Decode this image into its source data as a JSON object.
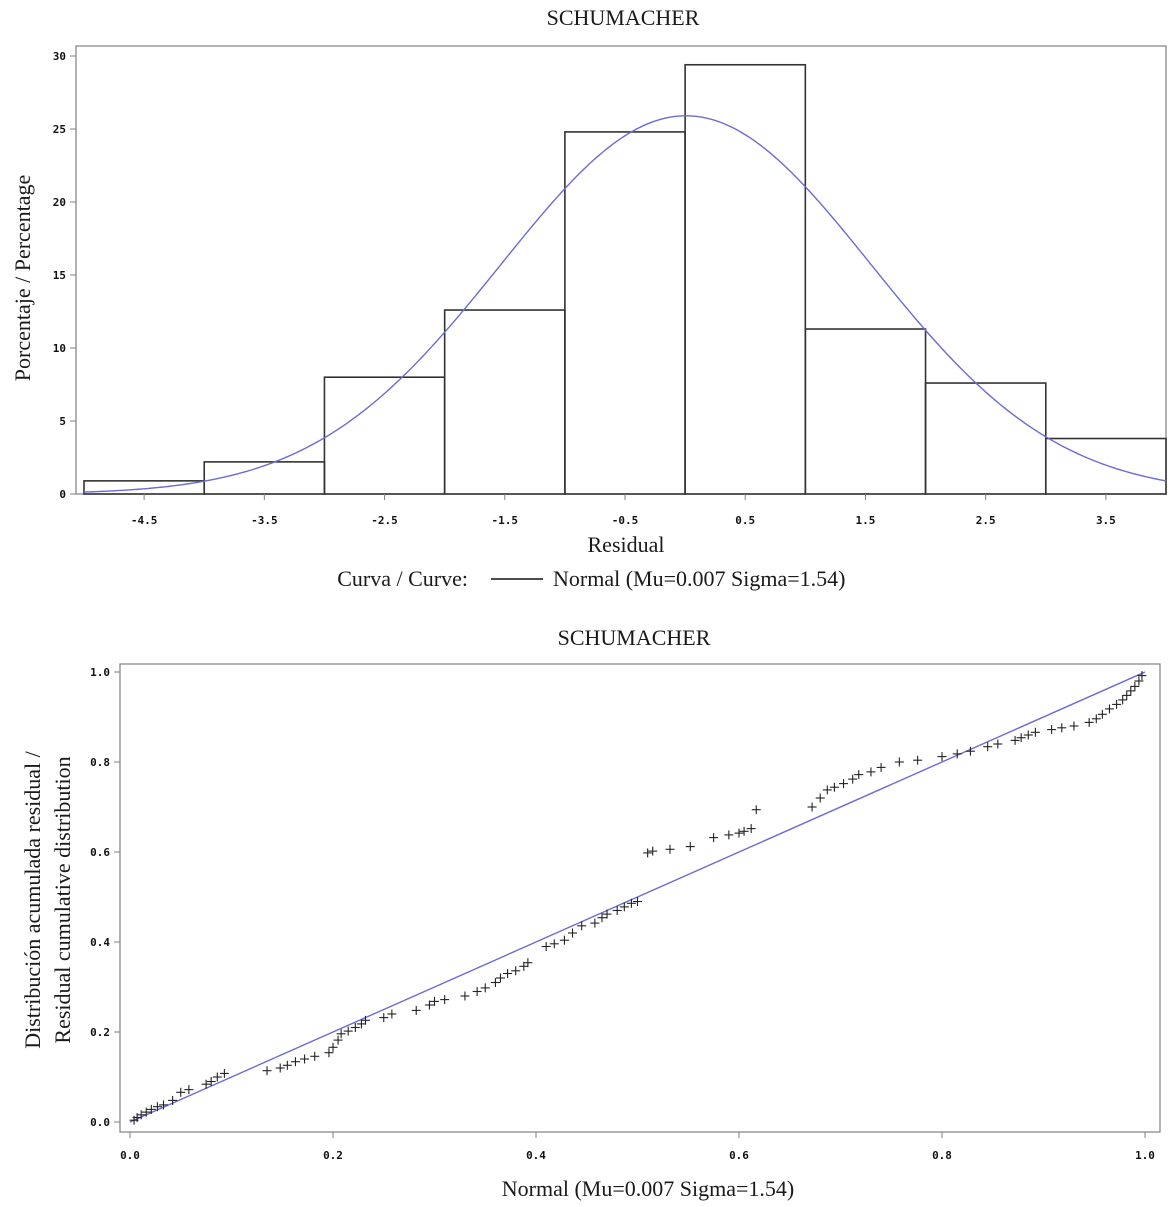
{
  "chart_data": [
    {
      "type": "bar",
      "title": "SCHUMACHER",
      "xlabel": "Residual",
      "ylabel": "Porcentaje / Percentage",
      "xlim": [
        -5,
        4
      ],
      "ylim": [
        0,
        30
      ],
      "x_ticks": [
        "-4.5",
        "-3.5",
        "-2.5",
        "-1.5",
        "-0.5",
        "0.5",
        "1.5",
        "2.5",
        "3.5"
      ],
      "y_ticks": [
        "0",
        "5",
        "10",
        "15",
        "20",
        "25",
        "30"
      ],
      "bins": [
        {
          "from": -5,
          "to": -4,
          "value": 0.9
        },
        {
          "from": -4,
          "to": -3,
          "value": 2.2
        },
        {
          "from": -3,
          "to": -2,
          "value": 8.0
        },
        {
          "from": -2,
          "to": -1,
          "value": 12.6
        },
        {
          "from": -1,
          "to": 0,
          "value": 24.8
        },
        {
          "from": 0,
          "to": 1,
          "value": 29.4
        },
        {
          "from": 1,
          "to": 2,
          "value": 11.3
        },
        {
          "from": 2,
          "to": 3,
          "value": 7.6
        },
        {
          "from": 3,
          "to": 4,
          "value": 3.8
        }
      ],
      "curve": {
        "type": "normal",
        "mu": 0.007,
        "sigma": 1.54,
        "color": "#6b6bd6"
      },
      "bar_color": "#333333",
      "legend": {
        "prefix": "Curva / Curve:",
        "label": "Normal (Mu=0.007 Sigma=1.54)"
      }
    },
    {
      "type": "scatter",
      "title": "SCHUMACHER",
      "xlabel": "Normal (Mu=0.007 Sigma=1.54)",
      "ylabel_line1": "Distribución acumulada residual /",
      "ylabel_line2": "Residual cumulative distribution",
      "xlim": [
        0,
        1
      ],
      "ylim": [
        0,
        1
      ],
      "x_ticks": [
        "0.0",
        "0.2",
        "0.4",
        "0.6",
        "0.8",
        "1.0"
      ],
      "y_ticks": [
        "0.0",
        "0.2",
        "0.4",
        "0.6",
        "0.8",
        "1.0"
      ],
      "reference_line": {
        "from": [
          0,
          0
        ],
        "to": [
          1,
          1
        ],
        "color": "#6b6bd6"
      },
      "marker": "+",
      "points": [
        [
          0.004,
          0.004
        ],
        [
          0.007,
          0.01
        ],
        [
          0.011,
          0.016
        ],
        [
          0.016,
          0.022
        ],
        [
          0.021,
          0.028
        ],
        [
          0.027,
          0.034
        ],
        [
          0.033,
          0.038
        ],
        [
          0.042,
          0.048
        ],
        [
          0.05,
          0.066
        ],
        [
          0.058,
          0.072
        ],
        [
          0.075,
          0.084
        ],
        [
          0.08,
          0.09
        ],
        [
          0.086,
          0.1
        ],
        [
          0.093,
          0.108
        ],
        [
          0.135,
          0.114
        ],
        [
          0.148,
          0.12
        ],
        [
          0.155,
          0.126
        ],
        [
          0.163,
          0.134
        ],
        [
          0.172,
          0.14
        ],
        [
          0.182,
          0.146
        ],
        [
          0.196,
          0.154
        ],
        [
          0.2,
          0.166
        ],
        [
          0.205,
          0.182
        ],
        [
          0.208,
          0.196
        ],
        [
          0.215,
          0.202
        ],
        [
          0.222,
          0.21
        ],
        [
          0.228,
          0.218
        ],
        [
          0.232,
          0.226
        ],
        [
          0.25,
          0.232
        ],
        [
          0.258,
          0.24
        ],
        [
          0.282,
          0.248
        ],
        [
          0.295,
          0.26
        ],
        [
          0.3,
          0.268
        ],
        [
          0.31,
          0.272
        ],
        [
          0.33,
          0.28
        ],
        [
          0.342,
          0.29
        ],
        [
          0.35,
          0.298
        ],
        [
          0.36,
          0.31
        ],
        [
          0.365,
          0.32
        ],
        [
          0.372,
          0.33
        ],
        [
          0.38,
          0.336
        ],
        [
          0.388,
          0.346
        ],
        [
          0.392,
          0.354
        ],
        [
          0.41,
          0.39
        ],
        [
          0.418,
          0.396
        ],
        [
          0.428,
          0.404
        ],
        [
          0.436,
          0.42
        ],
        [
          0.445,
          0.436
        ],
        [
          0.458,
          0.442
        ],
        [
          0.465,
          0.454
        ],
        [
          0.47,
          0.462
        ],
        [
          0.48,
          0.47
        ],
        [
          0.487,
          0.478
        ],
        [
          0.494,
          0.486
        ],
        [
          0.5,
          0.49
        ],
        [
          0.51,
          0.598
        ],
        [
          0.515,
          0.602
        ],
        [
          0.532,
          0.606
        ],
        [
          0.552,
          0.612
        ],
        [
          0.575,
          0.632
        ],
        [
          0.59,
          0.638
        ],
        [
          0.6,
          0.642
        ],
        [
          0.605,
          0.646
        ],
        [
          0.612,
          0.652
        ],
        [
          0.617,
          0.694
        ],
        [
          0.672,
          0.7
        ],
        [
          0.68,
          0.72
        ],
        [
          0.687,
          0.738
        ],
        [
          0.694,
          0.744
        ],
        [
          0.703,
          0.752
        ],
        [
          0.712,
          0.762
        ],
        [
          0.718,
          0.772
        ],
        [
          0.73,
          0.778
        ],
        [
          0.74,
          0.788
        ],
        [
          0.758,
          0.8
        ],
        [
          0.776,
          0.804
        ],
        [
          0.8,
          0.812
        ],
        [
          0.815,
          0.818
        ],
        [
          0.828,
          0.824
        ],
        [
          0.845,
          0.834
        ],
        [
          0.855,
          0.84
        ],
        [
          0.872,
          0.848
        ],
        [
          0.878,
          0.854
        ],
        [
          0.885,
          0.86
        ],
        [
          0.892,
          0.866
        ],
        [
          0.908,
          0.872
        ],
        [
          0.918,
          0.876
        ],
        [
          0.93,
          0.88
        ],
        [
          0.945,
          0.888
        ],
        [
          0.952,
          0.896
        ],
        [
          0.958,
          0.906
        ],
        [
          0.965,
          0.918
        ],
        [
          0.972,
          0.928
        ],
        [
          0.978,
          0.938
        ],
        [
          0.982,
          0.948
        ],
        [
          0.986,
          0.958
        ],
        [
          0.99,
          0.968
        ],
        [
          0.994,
          0.98
        ],
        [
          0.997,
          0.992
        ]
      ]
    }
  ]
}
